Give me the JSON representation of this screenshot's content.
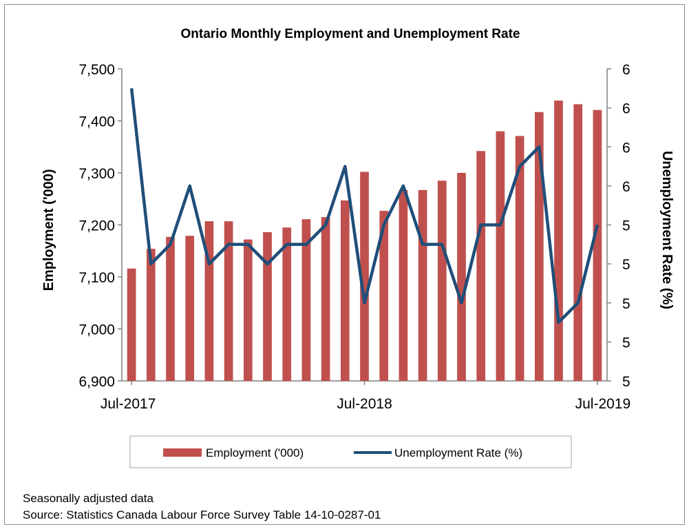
{
  "chart_data": {
    "type": "bar+line",
    "title": "Ontario Monthly Employment and Unemployment Rate",
    "ylabel_left": "Employment ('000)",
    "ylabel_right": "Unemployment Rate (%)",
    "x_tick_labels": [
      "Jul-2017",
      "Jul-2018",
      "Jul-2019"
    ],
    "left_axis": {
      "min": 6900,
      "max": 7500,
      "ticks": [
        "6,900",
        "7,000",
        "7,100",
        "7,200",
        "7,300",
        "7,400",
        "7,500"
      ]
    },
    "right_axis": {
      "ticks": [
        "5",
        "5",
        "5",
        "5",
        "5",
        "6",
        "6",
        "6",
        "6"
      ],
      "min": 5.0,
      "max": 6.6
    },
    "categories": [
      "Jul-2017",
      "Aug-2017",
      "Sep-2017",
      "Oct-2017",
      "Nov-2017",
      "Dec-2017",
      "Jan-2018",
      "Feb-2018",
      "Mar-2018",
      "Apr-2018",
      "May-2018",
      "Jun-2018",
      "Jul-2018",
      "Aug-2018",
      "Sep-2018",
      "Oct-2018",
      "Nov-2018",
      "Dec-2018",
      "Jan-2019",
      "Feb-2019",
      "Mar-2019",
      "Apr-2019",
      "May-2019",
      "Jun-2019",
      "Jul-2019"
    ],
    "series": [
      {
        "name": "Employment ('000)",
        "kind": "bar",
        "axis": "left",
        "color": "#c0504d",
        "values": [
          7116,
          7154,
          7177,
          7179,
          7207,
          7207,
          7172,
          7186,
          7195,
          7211,
          7215,
          7247,
          7302,
          7227,
          7267,
          7267,
          7285,
          7300,
          7342,
          7380,
          7371,
          7417,
          7439,
          7432,
          7421
        ]
      },
      {
        "name": "Unemployment Rate (%)",
        "kind": "line",
        "axis": "right",
        "color": "#1f4e79",
        "values": [
          6.5,
          5.6,
          5.7,
          6.0,
          5.6,
          5.7,
          5.7,
          5.6,
          5.7,
          5.7,
          5.8,
          6.1,
          5.4,
          5.8,
          6.0,
          5.7,
          5.7,
          5.4,
          5.8,
          5.8,
          6.1,
          6.2,
          5.3,
          5.4,
          5.8
        ]
      }
    ],
    "legend_position": "bottom",
    "grid": false
  },
  "notes": {
    "line1": "Seasonally adjusted data",
    "line2": "Source: Statistics Canada Labour Force Survey Table 14-10-0287-01"
  }
}
